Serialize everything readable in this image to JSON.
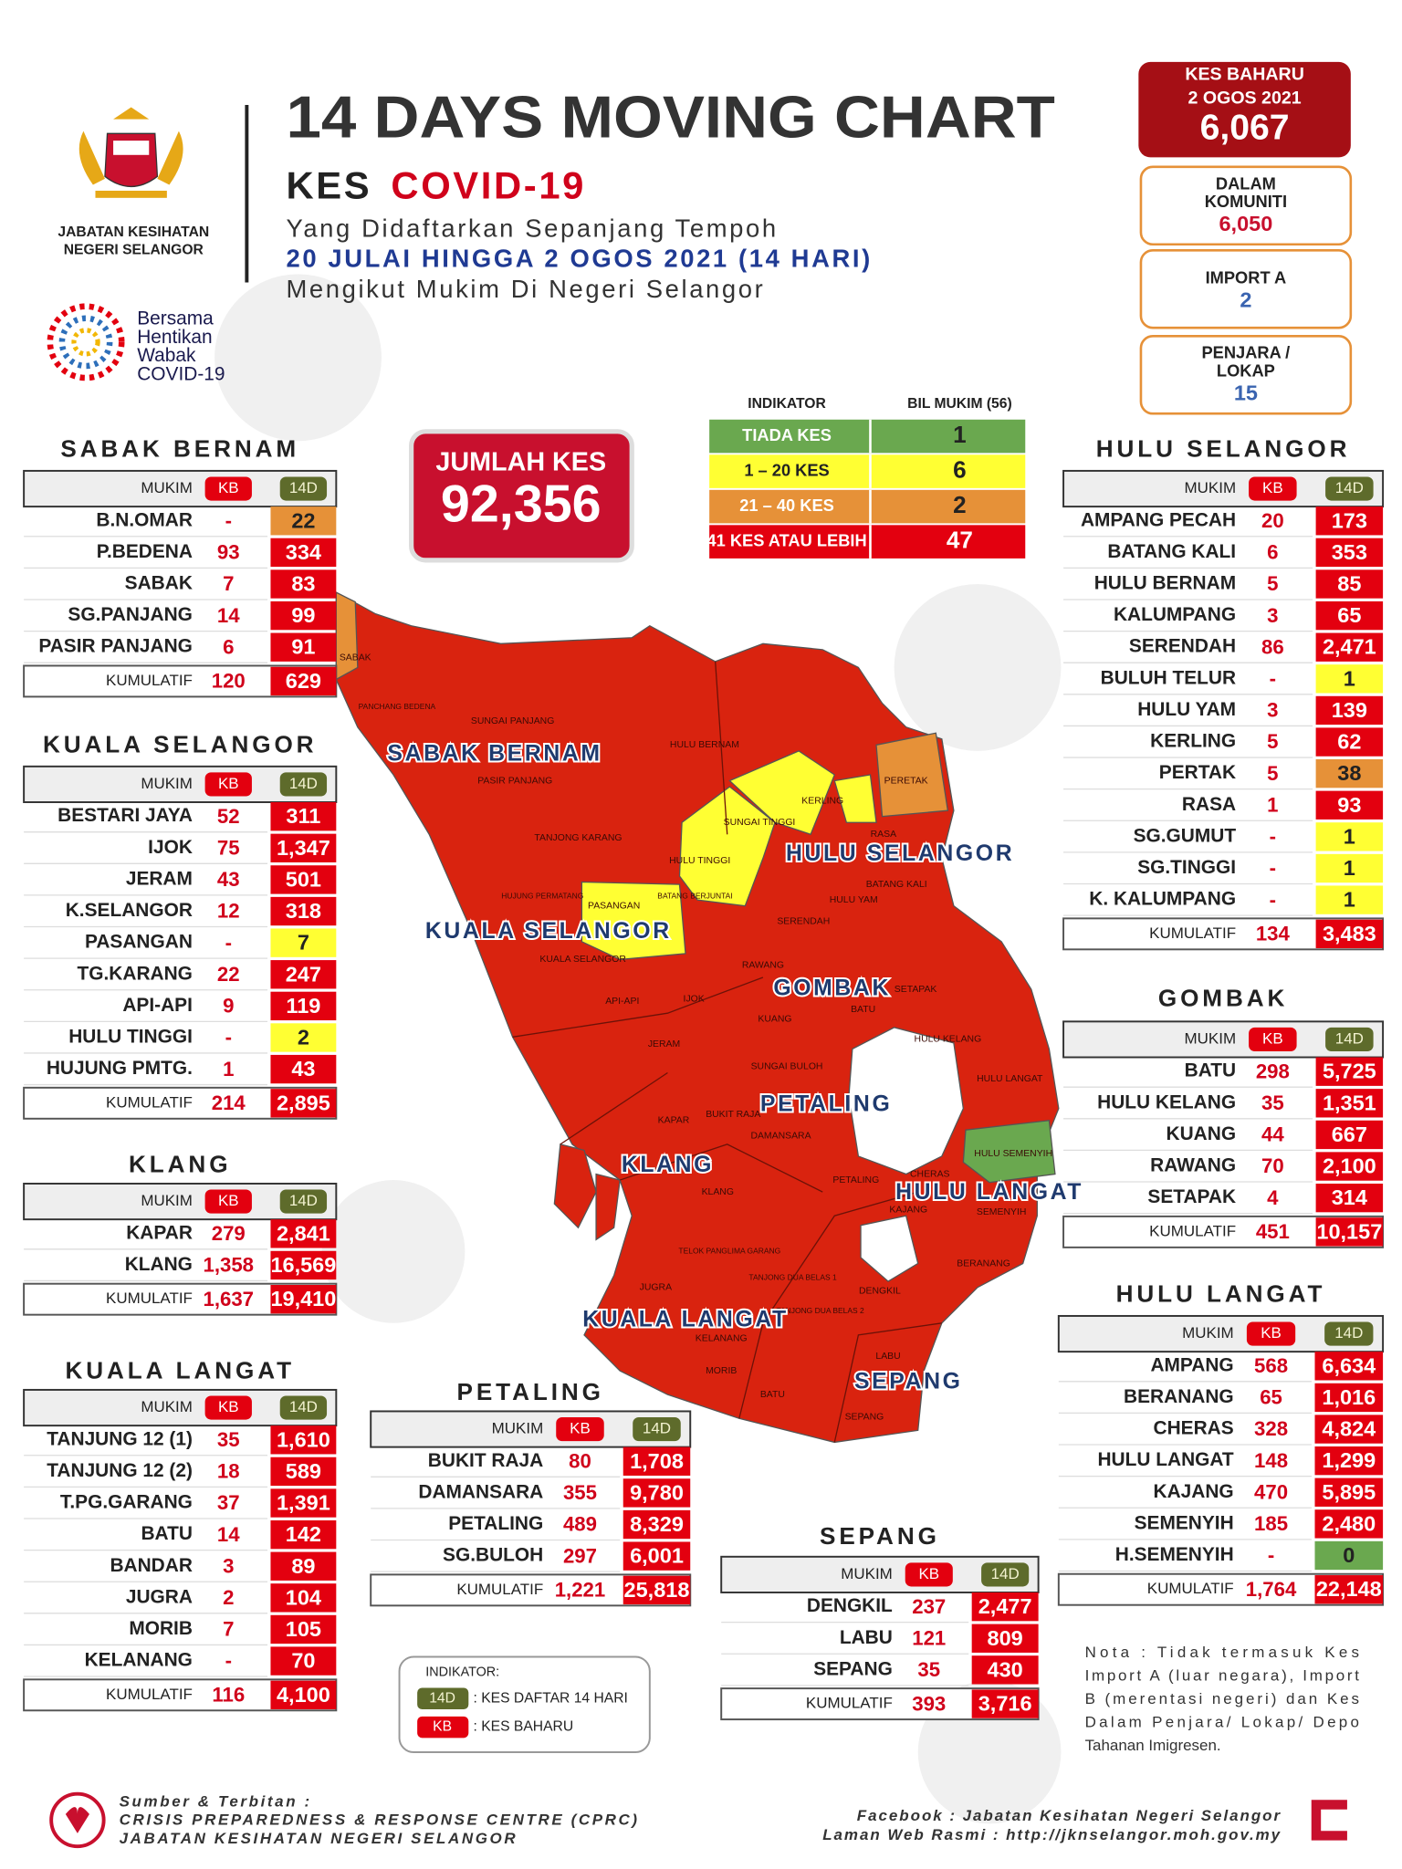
{
  "header": {
    "department": [
      "JABATAN KESIHATAN",
      "NEGERI SELANGOR"
    ],
    "title": "14 DAYS MOVING CHART",
    "kes": "KES",
    "covid": "COVID-19",
    "lines": [
      "Yang Didaftarkan Sepanjang Tempoh",
      "20 JULAI HINGGA 2 OGOS 2021 (14 HARI)",
      "Mengikut Mukim Di Negeri Selangor"
    ],
    "campaign": [
      "Bersama",
      "Hentikan",
      "Wabak",
      "COVID-19"
    ]
  },
  "summary": {
    "new_cases": {
      "label": "KES BAHARU",
      "date": "2 OGOS 2021",
      "value": "6,067"
    },
    "breakdown": [
      {
        "label": [
          "DALAM",
          "KOMUNITI"
        ],
        "value": "6,050",
        "color": "#c8102e"
      },
      {
        "label": [
          "IMPORT A"
        ],
        "value": "2",
        "color": "#3a64b0"
      },
      {
        "label": [
          "PENJARA /",
          "LOKAP"
        ],
        "value": "15",
        "color": "#3a64b0"
      }
    ],
    "total": {
      "label": "JUMLAH KES",
      "value": "92,356"
    }
  },
  "indicator": {
    "headers": [
      "INDIKATOR",
      "BIL MUKIM (56)"
    ],
    "rows": [
      {
        "label": "TIADA KES",
        "count": "1",
        "color": "#6aa84f"
      },
      {
        "label": "1 – 20 KES",
        "count": "6",
        "color": "#ffff33"
      },
      {
        "label": "21 – 40 KES",
        "count": "2",
        "color": "#e69138"
      },
      {
        "label": "41 KES ATAU LEBIH",
        "count": "47",
        "color": "#e3000f"
      }
    ]
  },
  "districts": [
    {
      "name": "SABAK BERNAM",
      "columns": [
        "MUKIM",
        "KB",
        "14D"
      ],
      "rows": [
        [
          "B.N.OMAR",
          "-",
          "22"
        ],
        [
          "P.BEDENA",
          "93",
          "334"
        ],
        [
          "SABAK",
          "7",
          "83"
        ],
        [
          "SG.PANJANG",
          "14",
          "99"
        ],
        [
          "PASIR PANJANG",
          "6",
          "91"
        ]
      ],
      "total": [
        "KUMULATIF",
        "120",
        "629"
      ]
    },
    {
      "name": "KUALA SELANGOR",
      "columns": [
        "MUKIM",
        "KB",
        "14D"
      ],
      "rows": [
        [
          "BESTARI JAYA",
          "52",
          "311"
        ],
        [
          "IJOK",
          "75",
          "1,347"
        ],
        [
          "JERAM",
          "43",
          "501"
        ],
        [
          "K.SELANGOR",
          "12",
          "318"
        ],
        [
          "PASANGAN",
          "-",
          "7"
        ],
        [
          "TG.KARANG",
          "22",
          "247"
        ],
        [
          "API-API",
          "9",
          "119"
        ],
        [
          "HULU TINGGI",
          "-",
          "2"
        ],
        [
          "HUJUNG PMTG.",
          "1",
          "43"
        ]
      ],
      "total": [
        "KUMULATIF",
        "214",
        "2,895"
      ]
    },
    {
      "name": "KLANG",
      "columns": [
        "MUKIM",
        "KB",
        "14D"
      ],
      "rows": [
        [
          "KAPAR",
          "279",
          "2,841"
        ],
        [
          "KLANG",
          "1,358",
          "16,569"
        ]
      ],
      "total": [
        "KUMULATIF",
        "1,637",
        "19,410"
      ]
    },
    {
      "name": "KUALA LANGAT",
      "columns": [
        "MUKIM",
        "KB",
        "14D"
      ],
      "rows": [
        [
          "TANJUNG 12 (1)",
          "35",
          "1,610"
        ],
        [
          "TANJUNG 12 (2)",
          "18",
          "589"
        ],
        [
          "T.PG.GARANG",
          "37",
          "1,391"
        ],
        [
          "BATU",
          "14",
          "142"
        ],
        [
          "BANDAR",
          "3",
          "89"
        ],
        [
          "JUGRA",
          "2",
          "104"
        ],
        [
          "MORIB",
          "7",
          "105"
        ],
        [
          "KELANANG",
          "-",
          "70"
        ]
      ],
      "total": [
        "KUMULATIF",
        "116",
        "4,100"
      ]
    },
    {
      "name": "PETALING",
      "columns": [
        "MUKIM",
        "KB",
        "14D"
      ],
      "rows": [
        [
          "BUKIT RAJA",
          "80",
          "1,708"
        ],
        [
          "DAMANSARA",
          "355",
          "9,780"
        ],
        [
          "PETALING",
          "489",
          "8,329"
        ],
        [
          "SG.BULOH",
          "297",
          "6,001"
        ]
      ],
      "total": [
        "KUMULATIF",
        "1,221",
        "25,818"
      ]
    },
    {
      "name": "SEPANG",
      "columns": [
        "MUKIM",
        "KB",
        "14D"
      ],
      "rows": [
        [
          "DENGKIL",
          "237",
          "2,477"
        ],
        [
          "LABU",
          "121",
          "809"
        ],
        [
          "SEPANG",
          "35",
          "430"
        ]
      ],
      "total": [
        "KUMULATIF",
        "393",
        "3,716"
      ]
    },
    {
      "name": "HULU SELANGOR",
      "columns": [
        "MUKIM",
        "KB",
        "14D"
      ],
      "rows": [
        [
          "AMPANG PECAH",
          "20",
          "173"
        ],
        [
          "BATANG KALI",
          "6",
          "353"
        ],
        [
          "HULU BERNAM",
          "5",
          "85"
        ],
        [
          "KALUMPANG",
          "3",
          "65"
        ],
        [
          "SERENDAH",
          "86",
          "2,471"
        ],
        [
          "BULUH TELUR",
          "-",
          "1"
        ],
        [
          "HULU YAM",
          "3",
          "139"
        ],
        [
          "KERLING",
          "5",
          "62"
        ],
        [
          "PERTAK",
          "5",
          "38"
        ],
        [
          "RASA",
          "1",
          "93"
        ],
        [
          "SG.GUMUT",
          "-",
          "1"
        ],
        [
          "SG.TINGGI",
          "-",
          "1"
        ],
        [
          "K. KALUMPANG",
          "-",
          "1"
        ]
      ],
      "total": [
        "KUMULATIF",
        "134",
        "3,483"
      ]
    },
    {
      "name": "GOMBAK",
      "columns": [
        "MUKIM",
        "KB",
        "14D"
      ],
      "rows": [
        [
          "BATU",
          "298",
          "5,725"
        ],
        [
          "HULU KELANG",
          "35",
          "1,351"
        ],
        [
          "KUANG",
          "44",
          "667"
        ],
        [
          "RAWANG",
          "70",
          "2,100"
        ],
        [
          "SETAPAK",
          "4",
          "314"
        ]
      ],
      "total": [
        "KUMULATIF",
        "451",
        "10,157"
      ]
    },
    {
      "name": "HULU LANGAT",
      "columns": [
        "MUKIM",
        "KB",
        "14D"
      ],
      "rows": [
        [
          "AMPANG",
          "568",
          "6,634"
        ],
        [
          "BERANANG",
          "65",
          "1,016"
        ],
        [
          "CHERAS",
          "328",
          "4,824"
        ],
        [
          "HULU LANGAT",
          "148",
          "1,299"
        ],
        [
          "KAJANG",
          "470",
          "5,895"
        ],
        [
          "SEMENYIH",
          "185",
          "2,480"
        ],
        [
          "H.SEMENYIH",
          "-",
          "0"
        ]
      ],
      "total": [
        "KUMULATIF",
        "1,764",
        "22,148"
      ]
    }
  ],
  "map": {
    "districts": [
      "SABAK BERNAM",
      "HULU SELANGOR",
      "KUALA SELANGOR",
      "GOMBAK",
      "PETALING",
      "KLANG",
      "HULU LANGAT",
      "KUALA LANGAT",
      "SEPANG"
    ],
    "mukims": [
      "SABAK",
      "PANCHANG BEDENA",
      "SUNGAI PANJANG",
      "PASIR PANJANG",
      "HULU BERNAM",
      "TANJONG KARANG",
      "SUNGAI TINGGI",
      "KERLING",
      "PERETAK",
      "RASA",
      "HULU TINGGI",
      "BATANG KALI",
      "HULU YAM",
      "PASANGAN",
      "BATANG BERJUNTAI",
      "HUJUNG PERMATANG",
      "SERENDAH",
      "KUALA SELANGOR",
      "RAWANG",
      "API-API",
      "IJOK",
      "SETAPAK",
      "BATU",
      "KUANG",
      "HULU KELANG",
      "JERAM",
      "SUNGAI BULOH",
      "HULU LANGAT",
      "BUKIT RAJA",
      "DAMANSARA",
      "KAPAR",
      "HULU SEMENYIH",
      "CHERAS",
      "PETALING",
      "KLANG",
      "KAJANG",
      "SEMENYIH",
      "TELOK PANGLIMA GARANG",
      "TANJONG DUA BELAS 1",
      "JUGRA",
      "BERANANG",
      "DENGKIL",
      "TANJONG DUA BELAS 2",
      "KELANANG",
      "LABU",
      "MORIB",
      "BATU",
      "SEPANG"
    ]
  },
  "legend": {
    "title": "INDIKATOR:",
    "items": [
      {
        "code": "14D",
        "text": ": KES DAFTAR 14 HARI"
      },
      {
        "code": "KB",
        "text": ": KES BAHARU"
      }
    ]
  },
  "note": [
    "Nota : Tidak termasuk Kes",
    "Import A (luar negara), Import",
    "B (merentasi negeri) dan Kes",
    "Dalam Penjara/ Lokap/ Depo",
    "Tahanan Imigresen."
  ],
  "footer": {
    "source": [
      "Sumber & Terbitan :",
      "CRISIS PREPAREDNESS & RESPONSE CENTRE (CPRC)",
      "JABATAN KESIHATAN NEGERI SELANGOR"
    ],
    "links": [
      "Facebook : Jabatan Kesihatan Negeri Selangor",
      "Laman Web Rasmi : http://jknselangor.moh.gov.my"
    ]
  }
}
